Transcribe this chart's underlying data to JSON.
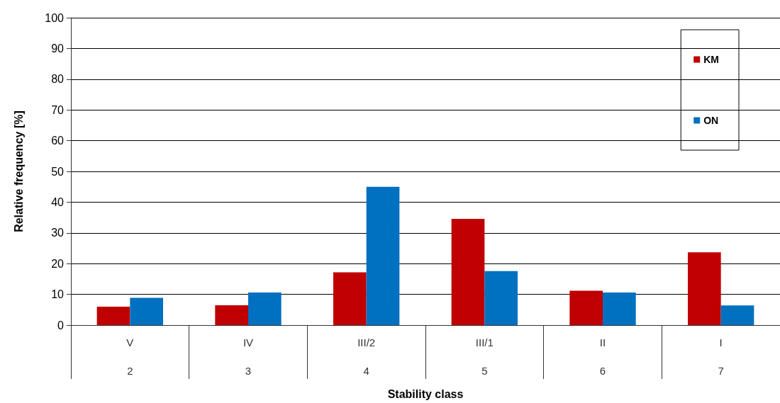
{
  "chart_data": {
    "type": "bar",
    "xlabel": "Stability class",
    "ylabel": "Relative frequency [%]",
    "categories": [
      "V\n2",
      "IV\n3",
      "III/2\n4",
      "III/1\n5",
      "II\n6",
      "I\n7"
    ],
    "series": [
      {
        "name": "KM",
        "color": "#c00000",
        "values": [
          6.0,
          6.5,
          17.2,
          34.6,
          11.2,
          23.7
        ]
      },
      {
        "name": "ON",
        "color": "#0070c0",
        "values": [
          8.9,
          10.6,
          45.0,
          17.6,
          10.6,
          6.4
        ]
      }
    ],
    "ylim": [
      0,
      100
    ],
    "yticks": [
      0,
      10,
      20,
      30,
      40,
      50,
      60,
      70,
      80,
      90,
      100
    ],
    "grid": "y",
    "legend": "top right"
  }
}
